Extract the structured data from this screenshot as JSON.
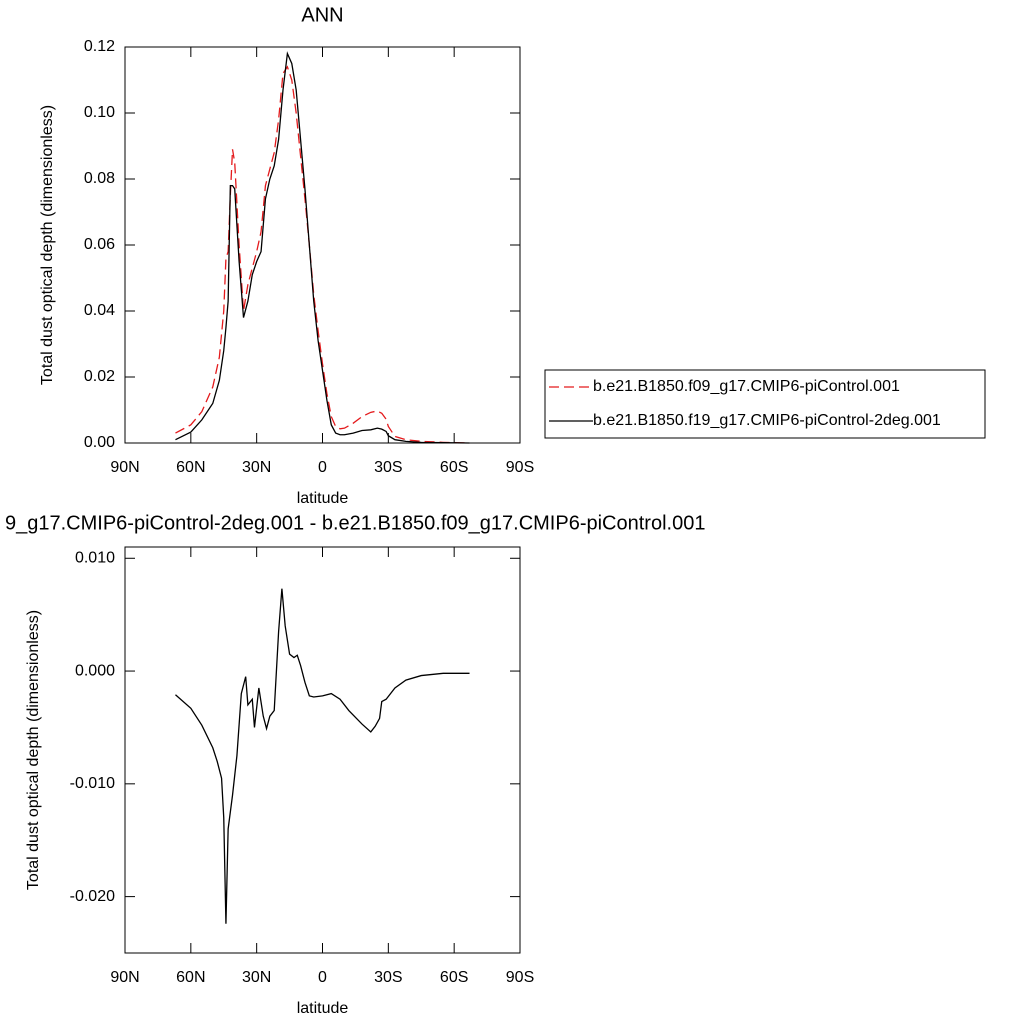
{
  "chart_data": [
    {
      "type": "line",
      "title": "ANN",
      "x_label": "latitude",
      "y_label": "Total dust optical depth (dimensionless)",
      "x": [
        67,
        60,
        55,
        50,
        47,
        45,
        44,
        43,
        42,
        41,
        40,
        38,
        36,
        34,
        32,
        30,
        28,
        26,
        24,
        22,
        20,
        18,
        16,
        14,
        12,
        10,
        8,
        6,
        4,
        2,
        0,
        -2,
        -4,
        -6,
        -8,
        -10,
        -14,
        -18,
        -22,
        -25,
        -27,
        -29,
        -30,
        -33,
        -38,
        -45,
        -55,
        -67
      ],
      "series": [
        {
          "name": "b.e21.B1850.f09_g17.CMIP6-piControl.001",
          "color": "#e41a1c",
          "line_style": "dashed",
          "values": [
            0.003,
            0.0055,
            0.0095,
            0.017,
            0.026,
            0.04,
            0.056,
            0.058,
            0.075,
            0.089,
            0.085,
            0.06,
            0.04,
            0.048,
            0.053,
            0.058,
            0.064,
            0.078,
            0.083,
            0.088,
            0.098,
            0.112,
            0.114,
            0.11,
            0.1,
            0.087,
            0.074,
            0.06,
            0.045,
            0.034,
            0.024,
            0.015,
            0.008,
            0.005,
            0.0043,
            0.0045,
            0.006,
            0.008,
            0.0093,
            0.0097,
            0.009,
            0.0072,
            0.005,
            0.002,
            0.001,
            0.0005,
            0.0002,
            0.0
          ]
        },
        {
          "name": "b.e21.B1850.f19_g17.CMIP6-piControl-2deg.001",
          "color": "#000000",
          "line_style": "solid",
          "values": [
            0.001,
            0.0033,
            0.007,
            0.012,
            0.019,
            0.028,
            0.035,
            0.043,
            0.078,
            0.078,
            0.077,
            0.055,
            0.038,
            0.043,
            0.051,
            0.055,
            0.058,
            0.074,
            0.08,
            0.084,
            0.092,
            0.107,
            0.118,
            0.115,
            0.107,
            0.092,
            0.077,
            0.06,
            0.043,
            0.031,
            0.022,
            0.013,
            0.0055,
            0.003,
            0.0025,
            0.0025,
            0.003,
            0.0038,
            0.004,
            0.0045,
            0.0042,
            0.0035,
            0.0022,
            0.001,
            0.0005,
            0.0002,
            0.0001,
            0.0
          ]
        }
      ],
      "xlim": [
        90,
        -90
      ],
      "xticks": [
        {
          "value": 90,
          "label": "90N"
        },
        {
          "value": 60,
          "label": "60N"
        },
        {
          "value": 30,
          "label": "30N"
        },
        0,
        {
          "value": -30,
          "label": "30S"
        },
        {
          "value": -60,
          "label": "60S"
        },
        {
          "value": -90,
          "label": "90S"
        }
      ],
      "ylim": [
        0,
        0.12
      ],
      "yticks": [
        {
          "value": 0,
          "label": "0.00"
        },
        0.02,
        0.04,
        0.06,
        0.08,
        {
          "value": 0.1,
          "label": "0.10"
        },
        {
          "value": 0.12,
          "label": "0.12"
        }
      ],
      "legend": "right"
    },
    {
      "type": "line",
      "title": "9_g17.CMIP6-piControl-2deg.001 - b.e21.B1850.f09_g17.CMIP6-piControl.001",
      "x_label": "latitude",
      "y_label": "Total dust optical depth (dimensionless)",
      "x": [
        67,
        60,
        55,
        50,
        48,
        46,
        45,
        44,
        43,
        41,
        39,
        37,
        35,
        34,
        32,
        31,
        29,
        27,
        25.5,
        24,
        22,
        20,
        18.5,
        17,
        15,
        13,
        11.5,
        10,
        8,
        6,
        4,
        0,
        -4,
        -8,
        -12,
        -18,
        -22,
        -24,
        -26,
        -27,
        -29,
        -33,
        -38,
        -45,
        -55,
        -67
      ],
      "values": [
        -0.0021,
        -0.0033,
        -0.0048,
        -0.0068,
        -0.008,
        -0.0095,
        -0.013,
        -0.0224,
        -0.014,
        -0.011,
        -0.0075,
        -0.002,
        -0.0005,
        -0.003,
        -0.0025,
        -0.005,
        -0.0015,
        -0.004,
        -0.0051,
        -0.004,
        -0.0035,
        0.0035,
        0.0073,
        0.004,
        0.0015,
        0.0012,
        0.0014,
        0.0005,
        -0.001,
        -0.0022,
        -0.0023,
        -0.0022,
        -0.002,
        -0.0025,
        -0.0035,
        -0.0047,
        -0.0054,
        -0.0049,
        -0.0042,
        -0.0027,
        -0.0025,
        -0.0015,
        -0.0008,
        -0.0004,
        -0.0002,
        -0.0002
      ],
      "color": "#000000",
      "xlim": [
        90,
        -90
      ],
      "xticks": [
        {
          "value": 90,
          "label": "90N"
        },
        {
          "value": 60,
          "label": "60N"
        },
        {
          "value": 30,
          "label": "30N"
        },
        0,
        {
          "value": -30,
          "label": "30S"
        },
        {
          "value": -60,
          "label": "60S"
        },
        {
          "value": -90,
          "label": "90S"
        }
      ],
      "ylim": [
        -0.025,
        0.011
      ],
      "yticks": [
        {
          "value": -0.02,
          "label": "-0.020"
        },
        {
          "value": -0.01,
          "label": "-0.010"
        },
        {
          "value": 0,
          "label": "0.000"
        },
        {
          "value": 0.01,
          "label": "0.010"
        }
      ]
    }
  ]
}
